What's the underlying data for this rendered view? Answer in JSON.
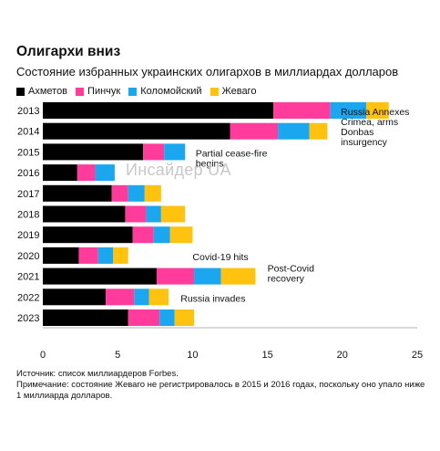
{
  "title": "Олигархи вниз",
  "subtitle": "Состояние избранных украинских олигархов в миллиардах долларов",
  "watermark": "Инсайдер UA",
  "source_note": "Источник: список миллиардеров Forbes.",
  "footnote": "Примечание: состояние Жеваго не регистрировалось в 2015 и 2016 годах, поскольку оно упало ниже 1 миллиарда долларов.",
  "chart_data": {
    "type": "bar",
    "orientation": "horizontal",
    "stacked": true,
    "categories": [
      "2013",
      "2014",
      "2015",
      "2016",
      "2017",
      "2018",
      "2019",
      "2020",
      "2021",
      "2022",
      "2023"
    ],
    "series": [
      {
        "name": "Ахметов",
        "color": "#000000",
        "values": [
          15.4,
          12.5,
          6.7,
          2.3,
          4.6,
          5.5,
          6.0,
          2.4,
          7.6,
          4.2,
          5.7
        ]
      },
      {
        "name": "Пинчук",
        "color": "#ff3c9c",
        "values": [
          3.8,
          3.2,
          1.4,
          1.2,
          1.1,
          1.4,
          1.4,
          1.3,
          2.5,
          1.9,
          2.1
        ]
      },
      {
        "name": "Коломойский",
        "color": "#1aa7f0",
        "values": [
          2.4,
          2.1,
          1.4,
          1.3,
          1.1,
          1.0,
          1.1,
          1.0,
          1.8,
          1.0,
          1.0
        ]
      },
      {
        "name": "Жеваго",
        "color": "#ffc30f",
        "values": [
          1.5,
          1.2,
          0,
          0,
          1.1,
          1.6,
          1.5,
          1.0,
          2.3,
          1.3,
          1.3
        ]
      }
    ],
    "xlim": [
      0,
      25
    ],
    "xticks": [
      0,
      5,
      10,
      15,
      20,
      25
    ],
    "legend_position": "top-left",
    "annotations": [
      {
        "category": "2013",
        "x": 19.9,
        "lines": [
          "Russia Annexes",
          "Crimea, arms",
          "Donbas",
          "insurgency"
        ]
      },
      {
        "category": "2015",
        "x": 10.2,
        "lines": [
          "Partial cease-fire",
          "begins"
        ]
      },
      {
        "category": "2020",
        "x": 10.0,
        "lines": [
          "Covid-19 hits"
        ]
      },
      {
        "category": "2021",
        "x": 15.0,
        "lines": [
          "Post-Covid",
          "recovery"
        ]
      },
      {
        "category": "2022",
        "x": 9.2,
        "lines": [
          "Russia invades"
        ]
      }
    ]
  }
}
